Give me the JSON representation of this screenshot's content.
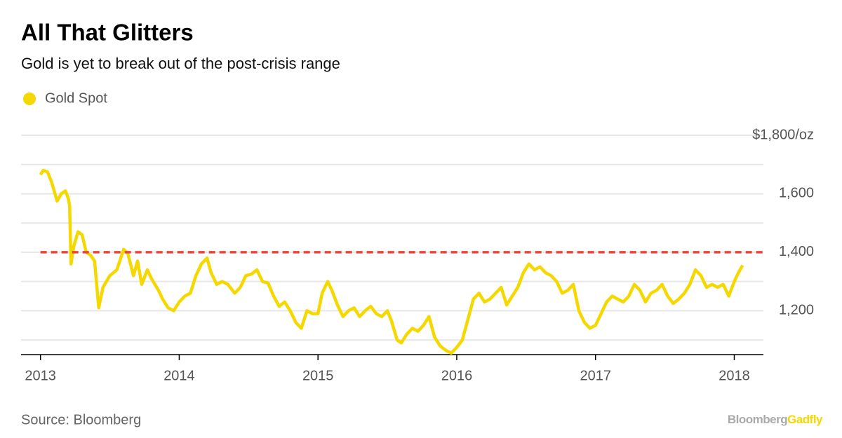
{
  "chart_data": {
    "type": "line",
    "title": "All That Glitters",
    "subtitle": "Gold is yet to break out of the post-crisis range",
    "source": "Source: Bloomberg",
    "branding": [
      "Bloomberg",
      "Gadfly"
    ],
    "series": [
      {
        "name": "Gold Spot",
        "color": "#f5d800",
        "x": [
          2013.0,
          2013.02,
          2013.05,
          2013.08,
          2013.12,
          2013.15,
          2013.18,
          2013.2,
          2013.21,
          2013.22,
          2013.24,
          2013.27,
          2013.3,
          2013.33,
          2013.36,
          2013.39,
          2013.42,
          2013.45,
          2013.5,
          2013.55,
          2013.6,
          2013.63,
          2013.67,
          2013.7,
          2013.73,
          2013.77,
          2013.8,
          2013.85,
          2013.88,
          2013.92,
          2013.96,
          2014.0,
          2014.04,
          2014.08,
          2014.12,
          2014.16,
          2014.2,
          2014.23,
          2014.27,
          2014.31,
          2014.35,
          2014.4,
          2014.44,
          2014.48,
          2014.52,
          2014.56,
          2014.6,
          2014.64,
          2014.68,
          2014.72,
          2014.76,
          2014.8,
          2014.84,
          2014.88,
          2014.92,
          2014.96,
          2015.0,
          2015.03,
          2015.07,
          2015.1,
          2015.14,
          2015.18,
          2015.22,
          2015.26,
          2015.3,
          2015.34,
          2015.38,
          2015.42,
          2015.46,
          2015.5,
          2015.53,
          2015.57,
          2015.6,
          2015.64,
          2015.68,
          2015.72,
          2015.76,
          2015.8,
          2015.84,
          2015.88,
          2015.92,
          2015.96,
          2016.0,
          2016.04,
          2016.08,
          2016.12,
          2016.16,
          2016.2,
          2016.24,
          2016.28,
          2016.32,
          2016.36,
          2016.4,
          2016.44,
          2016.48,
          2016.52,
          2016.56,
          2016.6,
          2016.64,
          2016.68,
          2016.72,
          2016.76,
          2016.8,
          2016.84,
          2016.88,
          2016.92,
          2016.96,
          2017.0,
          2017.04,
          2017.08,
          2017.12,
          2017.16,
          2017.2,
          2017.24,
          2017.28,
          2017.32,
          2017.36,
          2017.4,
          2017.44,
          2017.48,
          2017.52,
          2017.56,
          2017.6,
          2017.64,
          2017.68,
          2017.72,
          2017.76,
          2017.8,
          2017.84,
          2017.88,
          2017.92,
          2017.96,
          2018.0,
          2018.03,
          2018.06
        ],
        "values": [
          1665,
          1680,
          1675,
          1640,
          1575,
          1600,
          1610,
          1585,
          1560,
          1360,
          1420,
          1470,
          1460,
          1400,
          1390,
          1370,
          1210,
          1280,
          1320,
          1340,
          1410,
          1395,
          1320,
          1370,
          1290,
          1340,
          1310,
          1270,
          1240,
          1210,
          1200,
          1230,
          1250,
          1260,
          1320,
          1360,
          1380,
          1330,
          1290,
          1300,
          1290,
          1260,
          1280,
          1320,
          1325,
          1340,
          1300,
          1295,
          1250,
          1215,
          1230,
          1200,
          1160,
          1140,
          1200,
          1190,
          1190,
          1260,
          1300,
          1270,
          1220,
          1180,
          1200,
          1210,
          1180,
          1200,
          1215,
          1190,
          1180,
          1200,
          1165,
          1100,
          1090,
          1120,
          1140,
          1130,
          1150,
          1180,
          1110,
          1080,
          1065,
          1055,
          1075,
          1100,
          1170,
          1240,
          1260,
          1230,
          1240,
          1260,
          1280,
          1220,
          1250,
          1280,
          1330,
          1360,
          1340,
          1350,
          1330,
          1320,
          1300,
          1260,
          1270,
          1290,
          1200,
          1160,
          1140,
          1150,
          1190,
          1230,
          1250,
          1240,
          1230,
          1250,
          1290,
          1270,
          1230,
          1260,
          1270,
          1290,
          1250,
          1225,
          1240,
          1260,
          1290,
          1340,
          1320,
          1280,
          1290,
          1280,
          1290,
          1250,
          1300,
          1330,
          1355
        ]
      }
    ],
    "reference_line": {
      "value": 1400,
      "color": "#e8453c"
    },
    "xlim": [
      2012.86,
      2018.21
    ],
    "xticks": [
      2013,
      2014,
      2015,
      2016,
      2017,
      2018
    ],
    "ylim": [
      1050,
      1800
    ],
    "yticks": [
      {
        "value": 1800,
        "label": "$1,800/oz"
      },
      {
        "value": 1600,
        "label": "1,600"
      },
      {
        "value": 1400,
        "label": "1,400"
      },
      {
        "value": 1200,
        "label": "1,200"
      }
    ],
    "minor_yticks": [
      1700,
      1500,
      1300,
      1100
    ],
    "grid": true
  }
}
